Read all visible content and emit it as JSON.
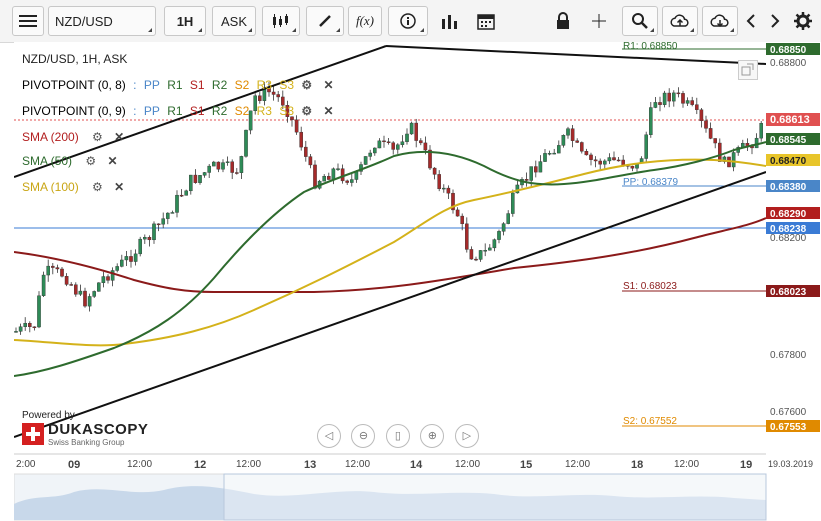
{
  "toolbar": {
    "menu_icon": "hamburger-icon",
    "symbol": "NZD/USD",
    "timeframe": "1H",
    "side": "ASK",
    "chart_type_icon": "candlestick-icon",
    "draw_icon": "pencil-icon",
    "indicators": "f(x)",
    "info_icon": "info-icon",
    "bars_icon": "bar-chart-icon",
    "calendar_icon": "calendar-icon",
    "lock_icon": "lock-icon",
    "crosshair_icon": "crosshair-icon",
    "zoom_icon": "magnifier-icon",
    "upload_icon": "cloud-upload-icon",
    "download_icon": "cloud-download-icon",
    "prev_icon": "chevron-left-icon",
    "next_icon": "chevron-right-icon",
    "settings_icon": "gear-icon"
  },
  "legend": {
    "title": "NZD/USD, 1H, ASK",
    "pivot1": "PIVOTPOINT (0, 8)",
    "pivot2": "PIVOTPOINT (0, 9)",
    "pp": "PP",
    "r1": "R1",
    "s1": "S1",
    "r2": "R2",
    "s2": "S2",
    "r3": "R3",
    "s3": "S3",
    "sma200": "SMA (200)",
    "sma50": "SMA (50)",
    "sma100": "SMA (100)"
  },
  "price_scale": [
    "0.68800",
    "0.68200",
    "0.67800",
    "0.67600"
  ],
  "badges": {
    "r1": "0.68850",
    "last": "0.68613",
    "sma50": "0.68545",
    "sma100": "0.68470",
    "pp": "0.68380",
    "sma200": "0.68290",
    "blue": "0.68238",
    "s1": "0.68023",
    "s2": "0.67553"
  },
  "level_labels": {
    "r1": "R1: 0.68850",
    "pp": "PP: 0.68379",
    "s1": "S1: 0.68023",
    "s2": "S2: 0.67552"
  },
  "time_axis": [
    "2:00",
    "09",
    "12:00",
    "12",
    "12:00",
    "13",
    "12:00",
    "14",
    "12:00",
    "15",
    "12:00",
    "18",
    "12:00",
    "19",
    "19.03.2019"
  ],
  "logo": {
    "powered": "Powered by",
    "brand": "DUKASCOPY",
    "sub": "Swiss Banking Group"
  },
  "colors": {
    "sma200": "#8b1a1a",
    "sma50": "#2e6b2e",
    "sma100": "#d4b21a",
    "bull": "#2e8b57",
    "bear": "#a52a2a",
    "last": "#e05050",
    "pp": "#4a86c8"
  }
}
